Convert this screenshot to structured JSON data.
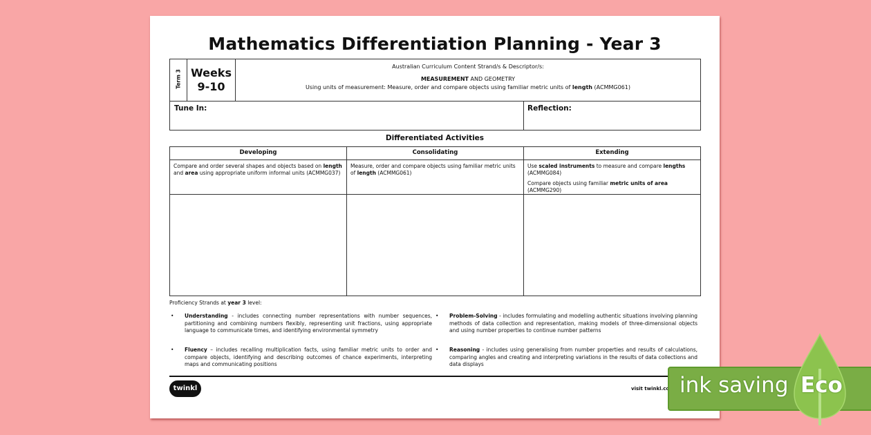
{
  "title": "Mathematics Differentiation Planning - Year 3",
  "header": {
    "term": "Term 3",
    "weeks_line1": "Weeks",
    "weeks_line2": "9-10",
    "curriculum_label": "Australian Curriculum Content Strand/s & Descriptor/s:",
    "strand_bold": "MEASUREMENT",
    "strand_rest": " AND GEOMETRY",
    "descriptor_pre": "Using units of measurement: Measure, order and compare objects using familiar metric units of ",
    "descriptor_bold": "length",
    "descriptor_post": " (ACMMG061)"
  },
  "tune_in": "Tune In:",
  "reflection": "Reflection:",
  "activities_title": "Differentiated Activities",
  "columns": [
    "Developing",
    "Consolidating",
    "Extending"
  ],
  "developing": {
    "t1": "Compare and order several shapes and objects based on ",
    "b1": "length",
    "t2": " and ",
    "b2": "area",
    "t3": " using appropriate uniform informal units (ACMMG037)"
  },
  "consolidating": {
    "t1": "Measure, order and compare objects using familiar metric units of ",
    "b1": "length",
    "t2": " (ACMMG061)"
  },
  "extending": {
    "t1": "Use ",
    "b1": "scaled instruments",
    "t2": " to measure and compare ",
    "b2": "lengths",
    "t3": " (ACMMG084)",
    "t4": "Compare objects using familiar ",
    "b3": "metric units of area",
    "t5": " (ACMMG290)"
  },
  "proficiency": {
    "pre": "Proficiency Strands at ",
    "bold": "year 3",
    "post": " level:",
    "items": [
      {
        "name": "Understanding",
        "text": " - includes connecting number representations with number sequences, partitioning and combining numbers flexibly, representing unit fractions, using appropriate language to communicate times, and identifying environmental symmetry"
      },
      {
        "name": "Problem-Solving",
        "text": " - includes formulating and modelling authentic situations involving planning methods of data collection and representation, making models of three-dimensional objects and using number properties to continue number patterns"
      },
      {
        "name": "Fluency",
        "text": " – includes recalling multiplication facts, using familiar metric units to order and compare objects, identifying and describing outcomes of chance experiments, interpreting maps and communicating positions"
      },
      {
        "name": "Reasoning",
        "text": " - includes using generalising from number properties and results of calculations, comparing angles and creating and interpreting variations in the results of data collections and data displays"
      }
    ]
  },
  "footer": {
    "logo": "twinkl",
    "visit": "visit twinkl.com"
  },
  "eco": {
    "ink_saving": "ink saving",
    "eco": "Eco",
    "green": "#7aad45"
  }
}
